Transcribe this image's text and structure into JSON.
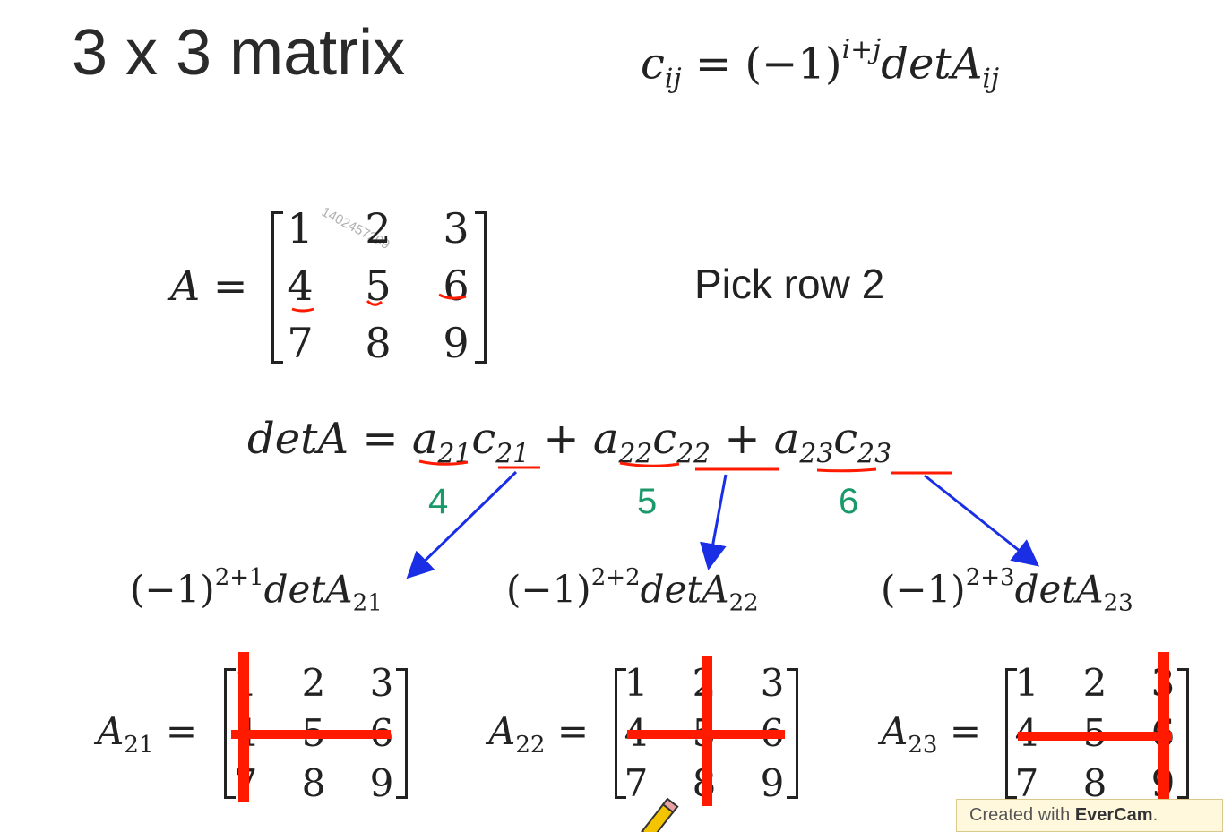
{
  "slide": {
    "title": "3 x 3 matrix",
    "pick_text": "Pick row 2",
    "watermark": "1402457209"
  },
  "formula": {
    "c": "c",
    "c_sub": "ij",
    "eq": " = (−1)",
    "exp": "i+j",
    "det": "detA",
    "det_sub": "ij"
  },
  "matrix_a": {
    "label": "A =",
    "rows": [
      [
        "1",
        "2",
        "3"
      ],
      [
        "4",
        "5",
        "6"
      ],
      [
        "7",
        "8",
        "9"
      ]
    ]
  },
  "expansion": {
    "lhs": "detA = ",
    "terms": [
      {
        "a": "a",
        "a_sub": "21",
        "c": "c",
        "c_sub": "21"
      },
      {
        "a": "a",
        "a_sub": "22",
        "c": "c",
        "c_sub": "22"
      },
      {
        "a": "a",
        "a_sub": "23",
        "c": "c",
        "c_sub": "23"
      }
    ],
    "plus": "+",
    "values": [
      "4",
      "5",
      "6"
    ]
  },
  "cofactors": [
    {
      "base": "(−1)",
      "exp": "2+1",
      "det": "detA",
      "sub": "21"
    },
    {
      "base": "(−1)",
      "exp": "2+2",
      "det": "detA",
      "sub": "22"
    },
    {
      "base": "(−1)",
      "exp": "2+3",
      "det": "detA",
      "sub": "23"
    }
  ],
  "minors": [
    {
      "label": "A",
      "sub": "21",
      "eq": " =",
      "rows": [
        [
          "1",
          "2",
          "3"
        ],
        [
          "4",
          "5",
          "6"
        ],
        [
          "7",
          "8",
          "9"
        ]
      ]
    },
    {
      "label": "A",
      "sub": "22",
      "eq": " =",
      "rows": [
        [
          "1",
          "2",
          "3"
        ],
        [
          "4",
          "5",
          "6"
        ],
        [
          "7",
          "8",
          "9"
        ]
      ]
    },
    {
      "label": "A",
      "sub": "23",
      "eq": " =",
      "rows": [
        [
          "1",
          "2",
          "3"
        ],
        [
          "4",
          "5",
          "6"
        ],
        [
          "7",
          "8",
          "9"
        ]
      ]
    }
  ],
  "evercam": {
    "prefix": "Created with ",
    "brand": "EverCam",
    "suffix": "."
  },
  "colors": {
    "annotation_red": "#ff1a00",
    "arrow_blue": "#1a2ee6",
    "value_green": "#1a9a6a"
  }
}
